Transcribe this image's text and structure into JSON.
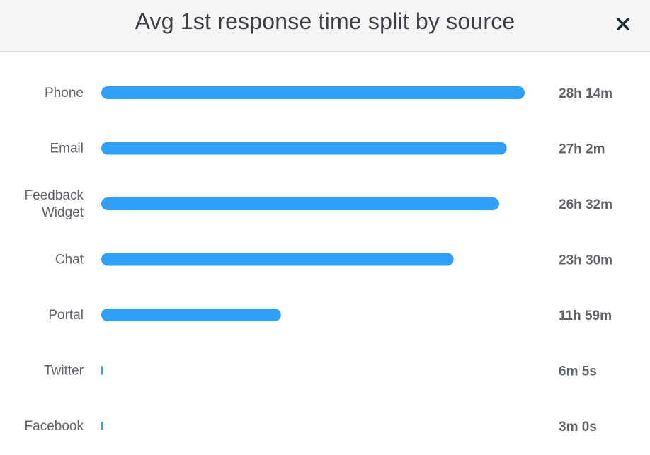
{
  "dialog": {
    "title": "Avg 1st response time split by source",
    "close_icon": "close-icon"
  },
  "colors": {
    "bar": "#2f9ff8",
    "label": "#5f6368",
    "value": "#5f6368"
  },
  "chart_data": {
    "type": "bar",
    "orientation": "horizontal",
    "title": "Avg 1st response time split by source",
    "unit": "minutes",
    "categories": [
      "Phone",
      "Email",
      "Feedback Widget",
      "Chat",
      "Portal",
      "Twitter",
      "Facebook"
    ],
    "category_lines": [
      [
        "Phone"
      ],
      [
        "Email"
      ],
      [
        "Feedback",
        "Widget"
      ],
      [
        "Chat"
      ],
      [
        "Portal"
      ],
      [
        "Twitter"
      ],
      [
        "Facebook"
      ]
    ],
    "values": [
      1694,
      1622,
      1592,
      1410,
      719,
      6.08,
      3
    ],
    "value_labels": [
      "28h 14m",
      "27h 2m",
      "26h 32m",
      "23h 30m",
      "11h 59m",
      "6m 5s",
      "3m 0s"
    ],
    "grid": false,
    "legend": "none"
  }
}
